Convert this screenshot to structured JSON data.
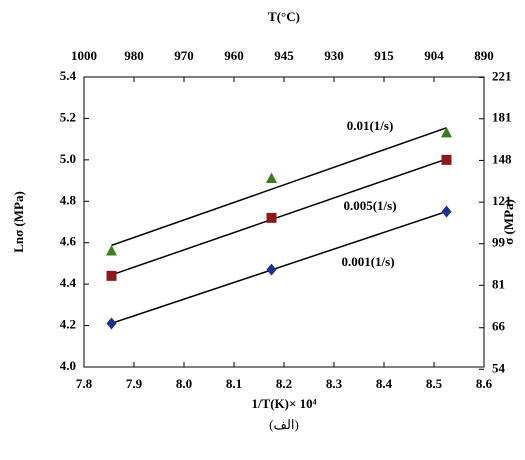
{
  "chart_data": {
    "type": "scatter",
    "x_label": "1/T(K)× 10⁴",
    "y_label": "Lnσ (MPa)",
    "x2_label": "T(°C)",
    "y2_label": "σ (MPa)",
    "caption": "(الف)",
    "x": [
      7.855,
      8.175,
      8.525
    ],
    "series": [
      {
        "name": "0.01(1/s)",
        "color": "#3a7d1e",
        "marker": "triangle",
        "values": [
          4.56,
          4.91,
          5.13
        ]
      },
      {
        "name": "0.005(1/s)",
        "color": "#8b1a1a",
        "marker": "square",
        "values": [
          4.44,
          4.72,
          5.0
        ]
      },
      {
        "name": "0.001(1/s)",
        "color": "#1f2f8c",
        "marker": "diamond",
        "values": [
          4.21,
          4.47,
          4.75
        ]
      }
    ],
    "xlim": [
      7.8,
      8.6
    ],
    "xticks": [
      7.8,
      7.9,
      {
        "value": 8,
        "label": "8.0"
      },
      8.1,
      8.2,
      8.3,
      8.4,
      8.5,
      8.6
    ],
    "ylim": [
      4,
      5.4
    ],
    "yticks": [
      {
        "value": 4,
        "label": "4.0"
      },
      4.2,
      4.4,
      4.6,
      4.8,
      {
        "value": 5,
        "label": "5.0"
      },
      5.2,
      5.4
    ],
    "x2ticks": [
      1000,
      980,
      970,
      960,
      945,
      930,
      915,
      904,
      890
    ],
    "y2lim": [
      54.598,
      221.406
    ],
    "y2log": true,
    "y2ticks": [
      54,
      66,
      81,
      99,
      121,
      148,
      181,
      221
    ],
    "trendline": true
  }
}
